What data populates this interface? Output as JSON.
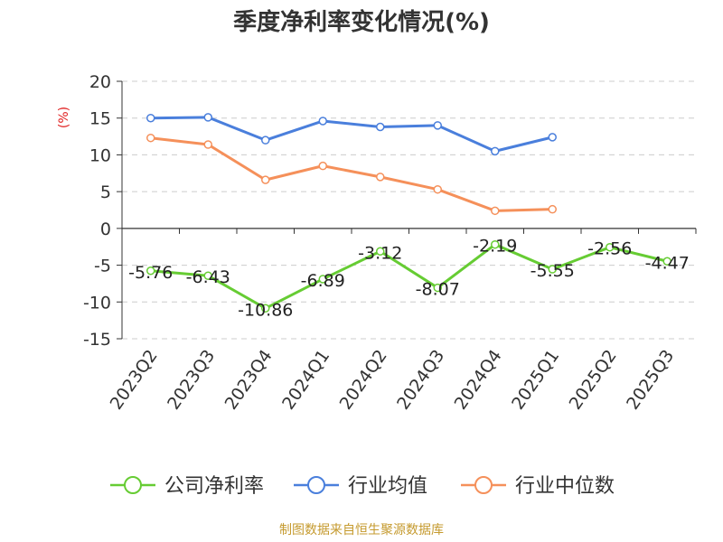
{
  "title": "季度净利率变化情况(%)",
  "source": "制图数据来自恒生聚源数据库",
  "colors": {
    "company": "#66cc33",
    "industry_avg": "#4a7fdc",
    "industry_median": "#f5905a",
    "axis": "#333333",
    "grid": "#cccccc",
    "unit": "#e02020"
  },
  "chart_data": {
    "type": "line",
    "unit_label": "(%)",
    "categories": [
      "2023Q2",
      "2023Q3",
      "2023Q4",
      "2024Q1",
      "2024Q2",
      "2024Q3",
      "2024Q4",
      "2025Q1",
      "2025Q2",
      "2025Q3"
    ],
    "ylim": [
      -15,
      20
    ],
    "yticks": [
      20,
      15,
      10,
      5,
      0,
      -5,
      -10,
      -15
    ],
    "grid": true,
    "legend_position": "bottom",
    "series": [
      {
        "key": "company",
        "name": "公司净利率",
        "values": [
          -5.76,
          -6.43,
          -10.86,
          -6.89,
          -3.12,
          -8.07,
          -2.19,
          -5.55,
          -2.56,
          -4.47
        ],
        "labels": [
          "-5.76",
          "-6.43",
          "-10.86",
          "-6.89",
          "-3.12",
          "-8.07",
          "-2.19",
          "-5.55",
          "-2.56",
          "-4.47"
        ]
      },
      {
        "key": "industry_avg",
        "name": "行业均值",
        "values": [
          15.0,
          15.1,
          12.0,
          14.6,
          13.8,
          14.0,
          10.5,
          12.4,
          null,
          null
        ]
      },
      {
        "key": "industry_median",
        "name": "行业中位数",
        "values": [
          12.3,
          11.4,
          6.6,
          8.5,
          7.0,
          5.3,
          2.4,
          2.6,
          null,
          null
        ]
      }
    ]
  }
}
